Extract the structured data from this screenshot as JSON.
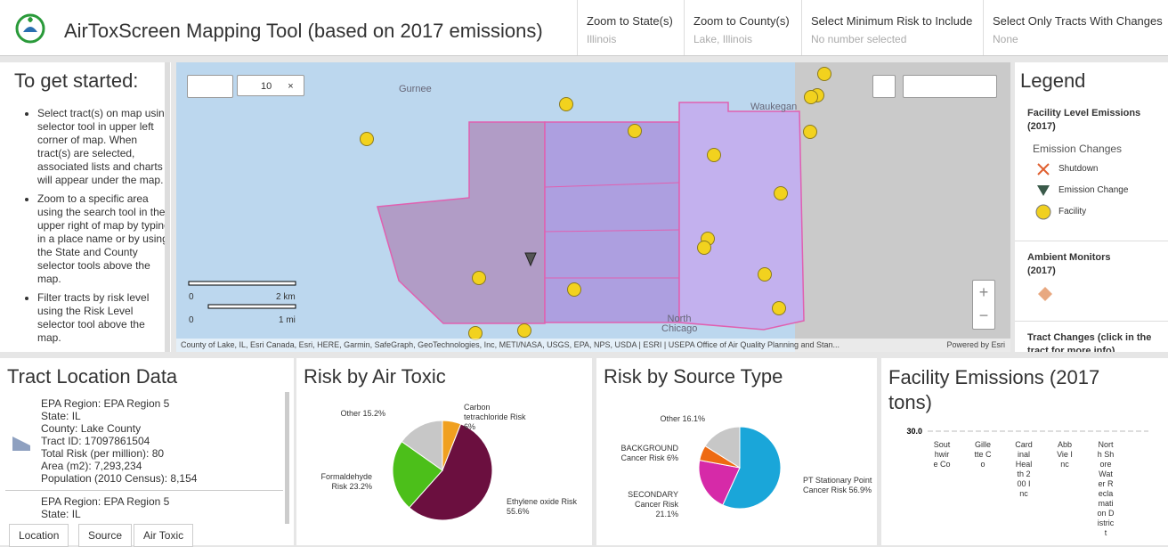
{
  "header": {
    "title": "AirToxScreen Mapping Tool (based on 2017 emissions)",
    "filters": [
      {
        "label": "Zoom to State(s)",
        "value": "Illinois"
      },
      {
        "label": "Zoom to County(s)",
        "value": "Lake, Illinois"
      },
      {
        "label": "Select Minimum Risk to Include",
        "value": "No number selected"
      },
      {
        "label": "Select Only Tracts With Changes",
        "value": "None"
      }
    ]
  },
  "sidebar": {
    "title": "To get started:",
    "bullets": [
      "Select tract(s) on map using selector tool in upper left corner of map.  When tract(s) are selected, associated lists and charts will appear under the map.",
      "Zoom to a specific area using the search tool in the upper right of map by typing in a place name or by using the State and County selector tools above the map.",
      "Filter tracts by risk level using the Risk Level selector tool above the map."
    ]
  },
  "map": {
    "selection_count": "10",
    "places": [
      "Gurnee",
      "Waukegan",
      "North Chicago"
    ],
    "scale": [
      "0",
      "2 km",
      "0",
      "1 mi"
    ],
    "attribution": "County of Lake, IL, Esri Canada, Esri, HERE, Garmin, SafeGraph, GeoTechnologies, Inc, METI/NASA, USGS, EPA, NPS, USDA | ESRI | USEPA Office of Air Quality Planning and Stan...",
    "powered": "Powered by Esri"
  },
  "legend": {
    "title": "Legend",
    "sections": [
      {
        "title": "Facility Level Emissions (2017)",
        "subtitle": "Emission Changes",
        "items": [
          "Shutdown",
          "Emission Change",
          "Facility"
        ]
      },
      {
        "title": "Ambient Monitors (2017)"
      },
      {
        "title": "Tract Changes (click in the tract for more info)"
      }
    ]
  },
  "tract_panel": {
    "title": "Tract Location Data",
    "records": [
      [
        "EPA Region: EPA Region 5",
        "State: IL",
        "County: Lake County",
        "Tract ID: 17097861504",
        "Total Risk (per million): 80",
        "Area (m2): 7,293,234",
        "Population (2010 Census): 8,154"
      ],
      [
        "EPA Region: EPA Region 5",
        "State: IL"
      ]
    ],
    "tabs": [
      "Location",
      "Source",
      "Air Toxic"
    ]
  },
  "chart_data": [
    {
      "type": "pie",
      "title": "Risk by Air Toxic",
      "categories": [
        "Carbon tetrachloride Risk",
        "Ethylene oxide Risk",
        "Formaldehyde Risk",
        "Other"
      ],
      "values": [
        6,
        55.6,
        23.2,
        15.2
      ],
      "value_labels": [
        "6%",
        "55.6%",
        "23.2%",
        "15.2%"
      ],
      "colors": [
        "#f0a020",
        "#6b0f3f",
        "#4cbf1a",
        "#c7c7c7"
      ]
    },
    {
      "type": "pie",
      "title": "Risk by Source Type",
      "categories": [
        "PT Stationary Point Cancer Risk",
        "SECONDARY Cancer Risk",
        "BACKGROUND Cancer Risk",
        "Other"
      ],
      "values": [
        56.9,
        21.1,
        6,
        16.1
      ],
      "value_labels": [
        "56.9%",
        "21.1%",
        "6%",
        "16.1%"
      ],
      "colors": [
        "#1aa6d9",
        "#d62aa8",
        "#ee6a12",
        "#c7c7c7"
      ]
    },
    {
      "type": "bar",
      "title": "Facility Emissions (2017 tons)",
      "categories": [
        "Southwire Co",
        "Gillette Co",
        "Cardinal Health 200 Inc",
        "AbbVie Inc",
        "North Shore Water Reclamation District"
      ],
      "ylim": [
        0,
        30
      ],
      "yticks": [
        {
          "value": 30,
          "label": "30.0"
        }
      ]
    }
  ]
}
